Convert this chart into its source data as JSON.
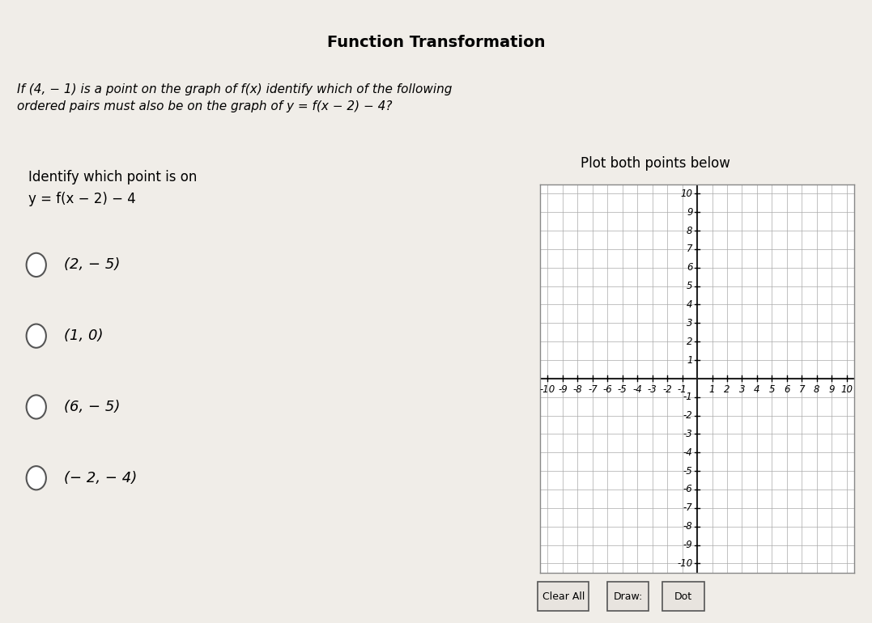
{
  "title": "Function Transformation",
  "question": "If (4, − 1) is a point on the graph of f(x) identify which of the following\nordered pairs must also be on the graph of y = f(x − 2) − 4?",
  "left_header": "Identify which point is on\ny = f(x − 2) − 4",
  "right_header": "Plot both points below",
  "choices": [
    "(2, − 5)",
    "(1, 0)",
    "(6, − 5)",
    "(− 2, − 4)"
  ],
  "axis_min": -10,
  "axis_max": 10,
  "bg_color": "#f0ede8",
  "grid_color": "#aaaaaa",
  "axis_color": "#222222",
  "border_color": "#555555",
  "title_fontsize": 14,
  "question_fontsize": 11,
  "choice_fontsize": 12,
  "label_fontsize": 8.5,
  "button_labels": [
    "Clear All",
    "Draw:",
    "Dot"
  ]
}
